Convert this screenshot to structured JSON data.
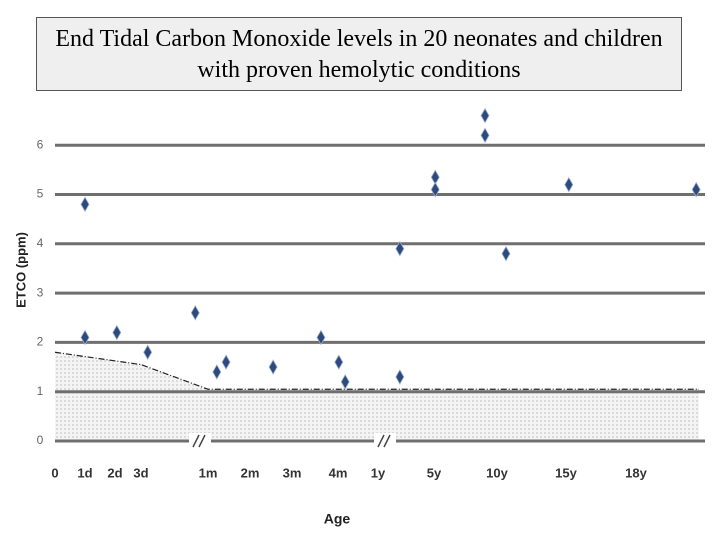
{
  "chart_data": {
    "type": "scatter",
    "title": "End Tidal Carbon Monoxide levels in 20 neonates and children with proven hemolytic conditions",
    "x_label": "Age",
    "y_label": "ETCO (ppm)",
    "xlim": [
      0,
      12.9
    ],
    "xticks": [
      0,
      {
        "value": 1,
        "label": "1d"
      },
      {
        "value": 2,
        "label": "2d"
      },
      {
        "value": 3,
        "label": "3d"
      },
      {
        "value": 4,
        "label": "1m"
      },
      {
        "value": 5,
        "label": "2m"
      },
      {
        "value": 6,
        "label": "3m"
      },
      {
        "value": 7,
        "label": "4m"
      },
      {
        "value": 8,
        "label": "1y"
      },
      {
        "value": 9,
        "label": "5y"
      },
      {
        "value": 10,
        "label": "10y"
      },
      {
        "value": 11,
        "label": "15y"
      },
      {
        "value": 12,
        "label": "18y"
      }
    ],
    "ylim": [
      0,
      6.6
    ],
    "yticks": [
      0,
      1,
      2,
      3,
      4,
      5,
      6
    ],
    "grid": true,
    "series": [
      {
        "color": "#2e4a7d",
        "x": [
          1,
          1,
          2.07,
          3.1,
          3.81,
          4.21,
          4.43,
          5.55,
          6.63,
          7.02,
          7.18,
          8.39,
          8.39,
          9.02,
          9.02,
          9.81,
          9.81,
          10.13,
          11.04,
          12.86
        ],
        "values": [
          4.8,
          2.1,
          2.2,
          1.8,
          2.6,
          1.4,
          1.6,
          1.5,
          2.1,
          1.6,
          1.2,
          3.9,
          1.3,
          5.35,
          5.1,
          6.6,
          6.2,
          3.8,
          5.2,
          5.1
        ]
      }
    ],
    "reference": {
      "x": [
        0,
        3,
        4,
        12.9
      ],
      "values": [
        1.8,
        1.55,
        1.05,
        1.05
      ]
    }
  }
}
